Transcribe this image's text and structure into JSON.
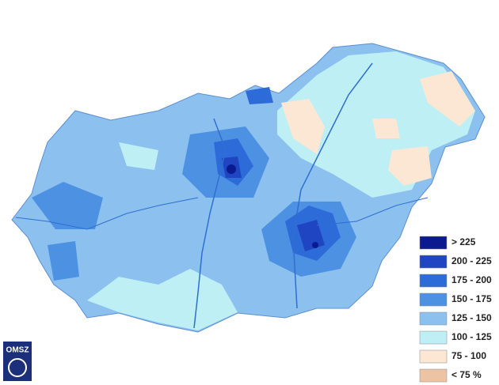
{
  "legend": {
    "items": [
      {
        "label": "> 225",
        "color": "#0b1a8f"
      },
      {
        "label": "200 - 225",
        "color": "#1f45c2"
      },
      {
        "label": "175 - 200",
        "color": "#2d6bd9"
      },
      {
        "label": "150 - 175",
        "color": "#4d91e3"
      },
      {
        "label": "125 - 150",
        "color": "#8cc0ee"
      },
      {
        "label": "100 - 125",
        "color": "#bdeff5"
      },
      {
        "label": "75 - 100",
        "color": "#fbe7d4"
      },
      {
        "label": "< 75 %",
        "color": "#ecc3a3"
      }
    ]
  },
  "logo": {
    "text": "OMSZ"
  }
}
